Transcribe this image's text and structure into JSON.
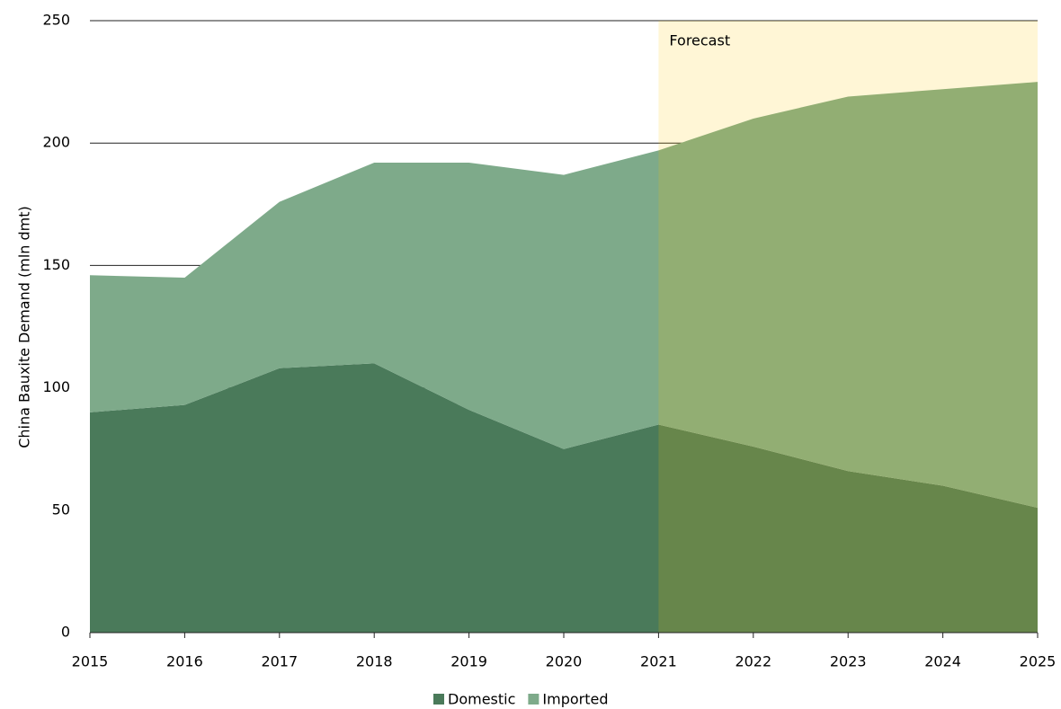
{
  "chart_data": {
    "type": "stacked_area",
    "y_label": "China Bauxite Demand (mln dmt)",
    "x": [
      2015,
      2016,
      2017,
      2018,
      2019,
      2020,
      2021,
      2022,
      2023,
      2024,
      2025
    ],
    "series": [
      {
        "name": "Domestic",
        "color": "#4a7a5a",
        "values": [
          90,
          93,
          108,
          110,
          91,
          75,
          85,
          76,
          66,
          60,
          51
        ]
      },
      {
        "name": "Imported",
        "color": "#7eaa8a",
        "values": [
          56,
          52,
          68,
          82,
          101,
          112,
          112,
          134,
          153,
          162,
          174
        ]
      }
    ],
    "xlim": [
      2015,
      2025
    ],
    "xticks": [
      2015,
      2016,
      2017,
      2018,
      2019,
      2020,
      2021,
      2022,
      2023,
      2024,
      2025
    ],
    "ylim": [
      0,
      250
    ],
    "yticks": [
      0,
      50,
      100,
      150,
      200,
      250
    ],
    "grid": true,
    "forecast": {
      "label": "Forecast",
      "from": 2021,
      "to": 2025,
      "color": "rgba(255,200,0,0.16)"
    },
    "legend": "bottom"
  }
}
